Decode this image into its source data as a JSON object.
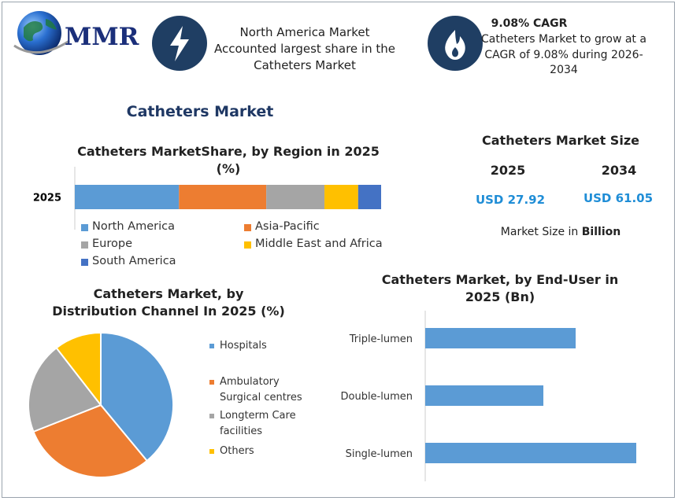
{
  "header": {
    "logo_text": "MMR",
    "callout_region": "North America Market Accounted largest share in the Catheters Market",
    "callout_cagr_title": "9.08% CAGR",
    "callout_cagr_text": "Catheters Market to grow at a CAGR of 9.08% during 2026-2034"
  },
  "title": "Catheters Market",
  "market_size": {
    "title": "Catheters Market Size",
    "years": [
      "2025",
      "2034"
    ],
    "values": [
      "USD 27.92",
      "USD 61.05"
    ],
    "note": "Market Size in",
    "note_unit": "Billion"
  },
  "chart_data": [
    {
      "type": "stacked-bar",
      "title": "Catheters MarketShare, by Region in 2025 (%)",
      "categories": [
        "2025"
      ],
      "series": [
        {
          "name": "North America",
          "color": "#5b9bd5",
          "values": [
            34
          ]
        },
        {
          "name": "Asia-Pacific",
          "color": "#ed7d31",
          "values": [
            28.5
          ]
        },
        {
          "name": "Europe",
          "color": "#a5a5a5",
          "values": [
            19
          ]
        },
        {
          "name": "Middle East and Africa",
          "color": "#ffc000",
          "values": [
            11
          ]
        },
        {
          "name": "South America",
          "color": "#4472c4",
          "values": [
            7.5
          ]
        }
      ]
    },
    {
      "type": "pie",
      "title": "Catheters Market, by Distribution Channel In 2025 (%)",
      "categories": [
        "Hospitals",
        "Ambulatory Surgical centres",
        "Longterm Care facilities",
        "Others"
      ],
      "values": [
        39,
        30,
        20.5,
        10.5
      ],
      "colors": [
        "#5b9bd5",
        "#ed7d31",
        "#a5a5a5",
        "#ffc000"
      ]
    },
    {
      "type": "hbar",
      "title": "Catheters Market, by End-User in 2025 (Bn)",
      "categories": [
        "Triple-lumen",
        "Double-lumen",
        "Single-lumen"
      ],
      "values": [
        8.76,
        6.88,
        12.29
      ],
      "color": "#5b9bd5"
    }
  ]
}
